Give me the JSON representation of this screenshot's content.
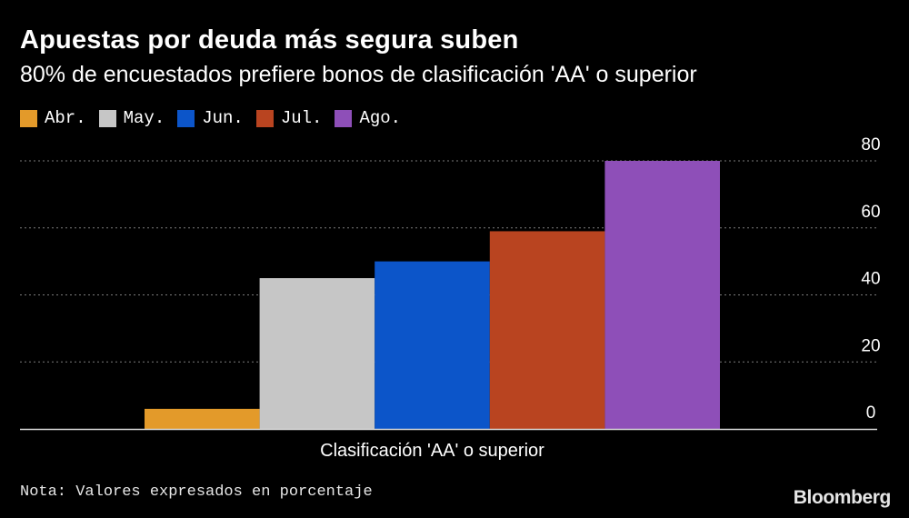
{
  "header": {
    "title": "Apuestas por deuda más segura suben",
    "subtitle": "80% de encuestados prefiere bonos de clasificación 'AA' o superior"
  },
  "footer": {
    "note": "Nota: Valores expresados en porcentaje",
    "brand": "Bloomberg"
  },
  "colors": {
    "background": "#000000",
    "gridline": "#7a7a7a",
    "axis": "#d9d9d9",
    "text": "#ffffff"
  },
  "chart_data": {
    "type": "bar",
    "categories": [
      "Clasificación 'AA' o superior"
    ],
    "series": [
      {
        "name": "Abr.",
        "color": "#e39a2a",
        "values": [
          6
        ]
      },
      {
        "name": "May.",
        "color": "#c6c6c6",
        "values": [
          45
        ]
      },
      {
        "name": "Jun.",
        "color": "#0c55c9",
        "values": [
          50
        ]
      },
      {
        "name": "Jul.",
        "color": "#b94420",
        "values": [
          59
        ]
      },
      {
        "name": "Ago.",
        "color": "#8e4fb8",
        "values": [
          80
        ]
      }
    ],
    "yticks": [
      "0",
      "20",
      "40",
      "60",
      "80"
    ],
    "ylim": [
      0,
      80
    ],
    "ytick_values": [
      0,
      20,
      40,
      60,
      80
    ],
    "grid": true,
    "gridline_style": "dotted",
    "y_axis_side": "right",
    "legend_placement": "top-left"
  }
}
